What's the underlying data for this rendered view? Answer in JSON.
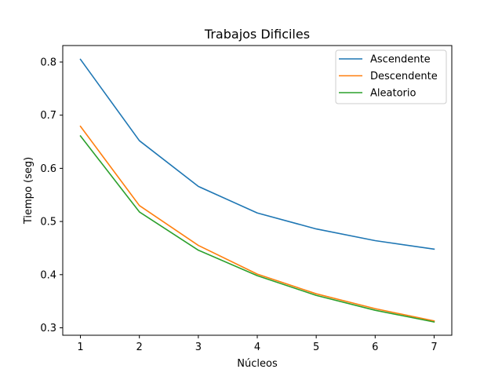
{
  "chart_data": {
    "type": "line",
    "title": "Trabajos Dificiles",
    "xlabel": "Núcleos",
    "ylabel": "Tiempo (seg)",
    "x": [
      1,
      2,
      3,
      4,
      5,
      6,
      7
    ],
    "xticks": [
      "1",
      "2",
      "3",
      "4",
      "5",
      "6",
      "7"
    ],
    "yticks": [
      "0.3",
      "0.4",
      "0.5",
      "0.6",
      "0.7",
      "0.8"
    ],
    "ytick_values": [
      0.3,
      0.4,
      0.5,
      0.6,
      0.7,
      0.8
    ],
    "xlim": [
      0.7,
      7.3
    ],
    "ylim": [
      0.286,
      0.831
    ],
    "grid": false,
    "legend_position": "top-right",
    "series": [
      {
        "name": "Ascendente",
        "color": "#1f77b4",
        "values": [
          0.805,
          0.652,
          0.566,
          0.516,
          0.486,
          0.464,
          0.448
        ]
      },
      {
        "name": "Descendente",
        "color": "#ff7f0e",
        "values": [
          0.679,
          0.53,
          0.455,
          0.401,
          0.364,
          0.336,
          0.313
        ]
      },
      {
        "name": "Aleatorio",
        "color": "#2ca02c",
        "values": [
          0.661,
          0.518,
          0.446,
          0.398,
          0.361,
          0.333,
          0.311
        ]
      }
    ]
  }
}
